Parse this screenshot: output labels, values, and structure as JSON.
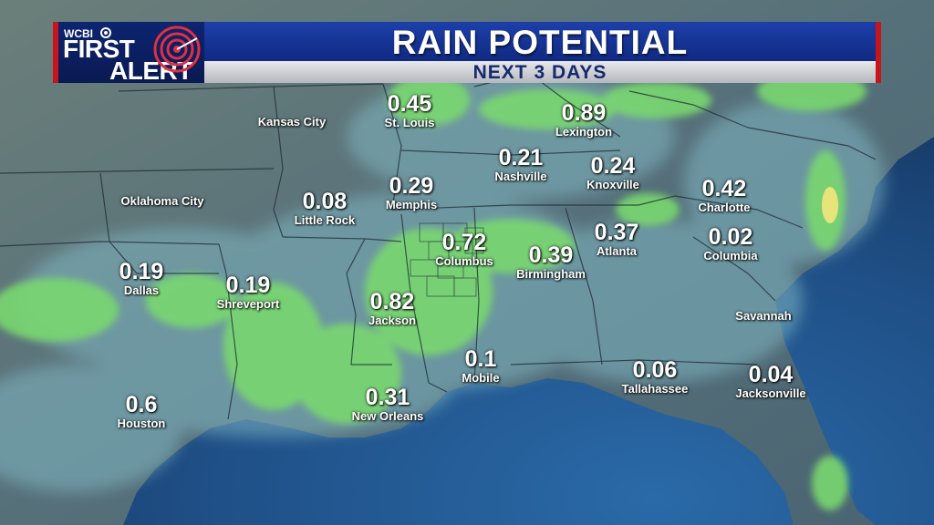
{
  "header": {
    "title": "RAIN POTENTIAL",
    "subtitle": "NEXT 3 DAYS",
    "logo": {
      "station": "WCBI",
      "line1": "FIRST",
      "line2": "ALERT"
    }
  },
  "cities": [
    {
      "name": "Kansas City",
      "value": ""
    },
    {
      "name": "St. Louis",
      "value": "0.45"
    },
    {
      "name": "Lexington",
      "value": "0.89"
    },
    {
      "name": "Nashville",
      "value": "0.21"
    },
    {
      "name": "Knoxville",
      "value": "0.24"
    },
    {
      "name": "Charlotte",
      "value": "0.42"
    },
    {
      "name": "Oklahoma City",
      "value": ""
    },
    {
      "name": "Little Rock",
      "value": "0.08"
    },
    {
      "name": "Memphis",
      "value": "0.29"
    },
    {
      "name": "Columbus",
      "value": "0.72"
    },
    {
      "name": "Birmingham",
      "value": "0.39"
    },
    {
      "name": "Atlanta",
      "value": "0.37"
    },
    {
      "name": "Columbia",
      "value": "0.02"
    },
    {
      "name": "Dallas",
      "value": "0.19"
    },
    {
      "name": "Shreveport",
      "value": "0.19"
    },
    {
      "name": "Jackson",
      "value": "0.82"
    },
    {
      "name": "Savannah",
      "value": ""
    },
    {
      "name": "Mobile",
      "value": "0.1"
    },
    {
      "name": "Tallahassee",
      "value": "0.06"
    },
    {
      "name": "Jacksonville",
      "value": "0.04"
    },
    {
      "name": "Houston",
      "value": "0.6"
    },
    {
      "name": "New Orleans",
      "value": "0.31"
    }
  ],
  "colors": {
    "ocean": "#1f4f86",
    "land": "#56707a",
    "rain_light": "#7fb6c2",
    "rain_heavy": "#79d870",
    "rain_peak": "#e8e37a",
    "banner_blue": "#1d3fa9",
    "banner_red": "#c8141c"
  }
}
